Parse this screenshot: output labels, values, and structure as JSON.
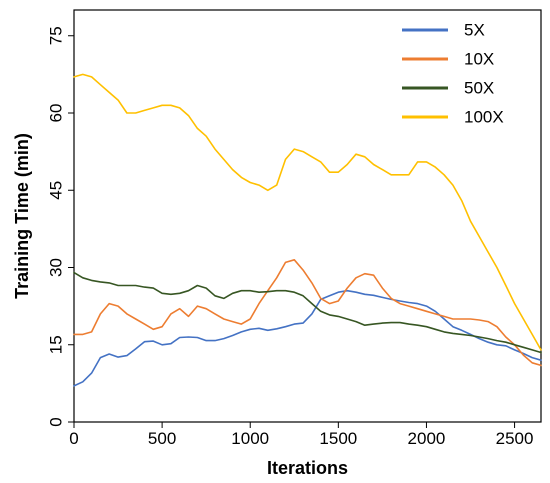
{
  "chart_data": {
    "type": "line",
    "title": "",
    "xlabel": "Iterations",
    "ylabel": "Training Time (min)",
    "xlim": [
      0,
      2650
    ],
    "ylim": [
      0,
      80
    ],
    "xticks": [
      0,
      500,
      1000,
      1500,
      2000,
      2500
    ],
    "xtick_labels": [
      "0",
      "500",
      "1000",
      "1500",
      "2000",
      "2500"
    ],
    "yticks": [
      0,
      15,
      30,
      45,
      60,
      75
    ],
    "ytick_labels": [
      "0",
      "15",
      "30",
      "45",
      "60",
      "75"
    ],
    "grid": false,
    "legend": "top-right",
    "series": [
      {
        "name": "5X",
        "color": "#4472C4",
        "x": [
          0,
          50,
          100,
          150,
          200,
          250,
          300,
          350,
          400,
          450,
          500,
          550,
          600,
          650,
          700,
          750,
          800,
          850,
          900,
          950,
          1000,
          1050,
          1100,
          1150,
          1200,
          1250,
          1300,
          1350,
          1400,
          1450,
          1500,
          1550,
          1600,
          1650,
          1700,
          1750,
          1800,
          1850,
          1900,
          1950,
          2000,
          2050,
          2100,
          2150,
          2200,
          2250,
          2300,
          2350,
          2400,
          2450,
          2500,
          2550,
          2600,
          2650
        ],
        "values": [
          7,
          7.8,
          9.5,
          12.5,
          13.2,
          12.6,
          12.9,
          14.2,
          15.6,
          15.7,
          15.0,
          15.2,
          16.4,
          16.5,
          16.4,
          15.8,
          15.8,
          16.2,
          16.8,
          17.5,
          18.0,
          18.2,
          17.8,
          18.1,
          18.5,
          19.0,
          19.2,
          21.0,
          23.8,
          24.5,
          25.2,
          25.5,
          25.2,
          24.8,
          24.6,
          24.2,
          23.8,
          23.5,
          23.2,
          23.0,
          22.5,
          21.5,
          20.0,
          18.5,
          17.8,
          17.0,
          16.2,
          15.5,
          15.0,
          14.8,
          14.0,
          13.3,
          12.5,
          12.0
        ]
      },
      {
        "name": "10X",
        "color": "#ED7D31",
        "x": [
          0,
          50,
          100,
          150,
          200,
          250,
          300,
          350,
          400,
          450,
          500,
          550,
          600,
          650,
          700,
          750,
          800,
          850,
          900,
          950,
          1000,
          1050,
          1100,
          1150,
          1200,
          1250,
          1300,
          1350,
          1400,
          1450,
          1500,
          1550,
          1600,
          1650,
          1700,
          1750,
          1800,
          1850,
          1900,
          1950,
          2000,
          2050,
          2100,
          2150,
          2200,
          2250,
          2300,
          2350,
          2400,
          2450,
          2500,
          2550,
          2600,
          2650
        ],
        "values": [
          17.0,
          17.0,
          17.5,
          21.0,
          23.0,
          22.5,
          21.0,
          20.0,
          19.0,
          18.0,
          18.5,
          21.0,
          22.0,
          20.5,
          22.5,
          22.0,
          21.0,
          20.0,
          19.5,
          19.0,
          20.0,
          23.0,
          25.5,
          28.0,
          31.0,
          31.5,
          29.5,
          27.0,
          24.0,
          23.0,
          23.5,
          26.0,
          28.0,
          28.8,
          28.5,
          26.0,
          24.0,
          23.0,
          22.5,
          22.0,
          21.5,
          21.0,
          20.5,
          20.0,
          20.0,
          20.0,
          19.8,
          19.5,
          18.5,
          16.5,
          15.0,
          13.0,
          11.5,
          11.0
        ]
      },
      {
        "name": "50X",
        "color": "#375623",
        "x": [
          0,
          50,
          100,
          150,
          200,
          250,
          300,
          350,
          400,
          450,
          500,
          550,
          600,
          650,
          700,
          750,
          800,
          850,
          900,
          950,
          1000,
          1050,
          1100,
          1150,
          1200,
          1250,
          1300,
          1350,
          1400,
          1450,
          1500,
          1550,
          1600,
          1650,
          1700,
          1750,
          1800,
          1850,
          1900,
          1950,
          2000,
          2050,
          2100,
          2150,
          2200,
          2250,
          2300,
          2350,
          2400,
          2450,
          2500,
          2550,
          2600,
          2650
        ],
        "values": [
          29.0,
          28.0,
          27.5,
          27.2,
          27.0,
          26.5,
          26.5,
          26.5,
          26.2,
          26.0,
          25.0,
          24.8,
          25.0,
          25.5,
          26.5,
          26.0,
          24.5,
          24.0,
          25.0,
          25.5,
          25.5,
          25.2,
          25.3,
          25.5,
          25.5,
          25.2,
          24.5,
          23.0,
          21.5,
          20.8,
          20.5,
          20.0,
          19.5,
          18.8,
          19.0,
          19.2,
          19.3,
          19.3,
          19.0,
          18.8,
          18.5,
          18.0,
          17.5,
          17.2,
          17.0,
          16.8,
          16.5,
          16.2,
          15.8,
          15.5,
          15.0,
          14.5,
          14.0,
          13.5
        ]
      },
      {
        "name": "100X",
        "color": "#FFC000",
        "x": [
          0,
          50,
          100,
          150,
          200,
          250,
          300,
          350,
          400,
          450,
          500,
          550,
          600,
          650,
          700,
          750,
          800,
          850,
          900,
          950,
          1000,
          1050,
          1100,
          1150,
          1200,
          1250,
          1300,
          1350,
          1400,
          1450,
          1500,
          1550,
          1600,
          1650,
          1700,
          1750,
          1800,
          1850,
          1900,
          1950,
          2000,
          2050,
          2100,
          2150,
          2200,
          2250,
          2300,
          2350,
          2400,
          2450,
          2500,
          2550,
          2600,
          2650
        ],
        "values": [
          67.0,
          67.5,
          67.0,
          65.5,
          64.0,
          62.5,
          60.0,
          60.0,
          60.5,
          61.0,
          61.5,
          61.5,
          61.0,
          59.5,
          57.0,
          55.5,
          53.0,
          51.0,
          49.0,
          47.5,
          46.5,
          46.0,
          45.0,
          46.0,
          51.0,
          53.0,
          52.5,
          51.5,
          50.5,
          48.5,
          48.5,
          50.0,
          52.0,
          51.5,
          50.0,
          49.0,
          48.0,
          48.0,
          48.0,
          50.5,
          50.5,
          49.5,
          48.0,
          46.0,
          43.0,
          39.0,
          36.0,
          33.0,
          30.0,
          26.5,
          23.0,
          20.0,
          17.0,
          14.0
        ]
      }
    ]
  }
}
